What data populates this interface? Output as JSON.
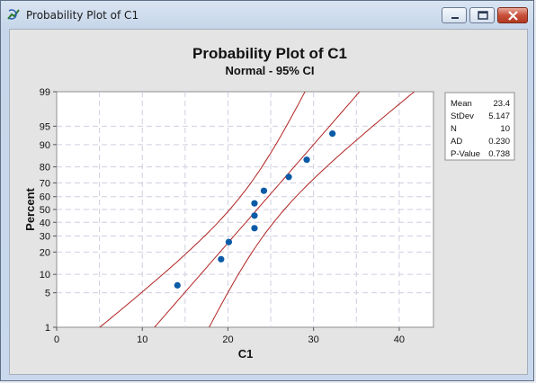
{
  "window": {
    "title": "Probability Plot of C1",
    "minimize_icon": "minimize-icon",
    "maximize_icon": "maximize-icon",
    "close_icon": "close-icon",
    "app_icon": "minitab-graph-icon"
  },
  "chart_data": {
    "type": "scatter",
    "title": "Probability Plot of C1",
    "subtitle": "Normal - 95% CI",
    "xlabel": "C1",
    "ylabel": "Percent",
    "xlim": [
      0,
      44
    ],
    "x_ticks": [
      0,
      10,
      20,
      30,
      40
    ],
    "x_tick_labels": [
      "0",
      "10",
      "20",
      "30",
      "40"
    ],
    "y_scale": "normal-probability",
    "ylim": [
      1,
      99
    ],
    "y_ticks": [
      1,
      5,
      10,
      20,
      30,
      40,
      50,
      60,
      70,
      80,
      90,
      95,
      99
    ],
    "y_tick_labels": [
      "1",
      "5",
      "10",
      "20",
      "30",
      "40",
      "50",
      "60",
      "70",
      "80",
      "90",
      "95",
      "99"
    ],
    "grid": true,
    "points": [
      {
        "x": 14.1,
        "y": 6.7
      },
      {
        "x": 19.2,
        "y": 16.3
      },
      {
        "x": 20.1,
        "y": 26.0
      },
      {
        "x": 23.1,
        "y": 35.6
      },
      {
        "x": 23.1,
        "y": 45.2
      },
      {
        "x": 23.1,
        "y": 54.8
      },
      {
        "x": 24.2,
        "y": 64.4
      },
      {
        "x": 27.1,
        "y": 74.0
      },
      {
        "x": 29.2,
        "y": 83.7
      },
      {
        "x": 32.2,
        "y": 93.3
      }
    ],
    "fit": {
      "mean": 23.4,
      "sd": 5.147
    },
    "ci_level": 0.95,
    "point_color": "#0b5aa6",
    "line_color": "#b22222",
    "legend_placement": "right",
    "stats": [
      {
        "label": "Mean",
        "value": "23.4"
      },
      {
        "label": "StDev",
        "value": "5.147"
      },
      {
        "label": "N",
        "value": "10"
      },
      {
        "label": "AD",
        "value": "0.230"
      },
      {
        "label": "P-Value",
        "value": "0.738"
      }
    ]
  }
}
